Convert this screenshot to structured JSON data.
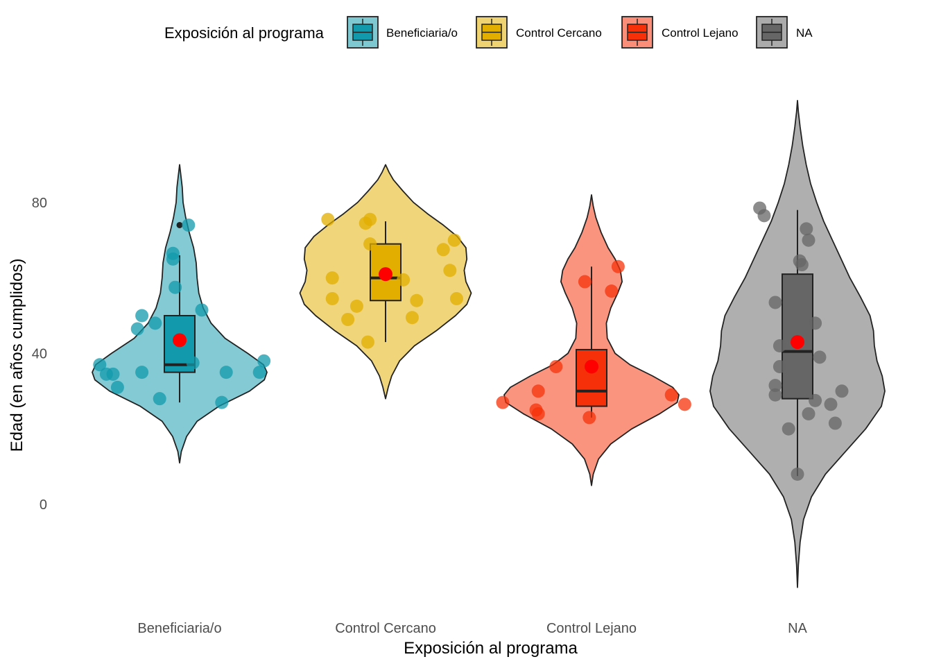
{
  "chart_data": {
    "type": "violin",
    "xlabel": "Exposición al programa",
    "ylabel": "Edad (en años cumplidos)",
    "ylim": [
      -28,
      110
    ],
    "y_ticks": [
      0,
      40,
      80
    ],
    "grid": false,
    "legend": {
      "title": "Exposición al programa",
      "placement": "top",
      "entries": [
        "Beneficiaria/o",
        "Control Cercano",
        "Control Lejano",
        "NA"
      ]
    },
    "categories": [
      "Beneficiaria/o",
      "Control Cercano",
      "Control Lejano",
      "NA"
    ],
    "series": [
      {
        "category": "Beneficiaria/o",
        "color": "#129aac",
        "violin_range": [
          11,
          90
        ],
        "violin_profile": [
          [
            11,
            0.0
          ],
          [
            14,
            0.02
          ],
          [
            18,
            0.08
          ],
          [
            22,
            0.2
          ],
          [
            26,
            0.45
          ],
          [
            30,
            0.8
          ],
          [
            33,
            0.97
          ],
          [
            35,
            1.0
          ],
          [
            37,
            0.96
          ],
          [
            40,
            0.78
          ],
          [
            44,
            0.52
          ],
          [
            48,
            0.36
          ],
          [
            52,
            0.27
          ],
          [
            56,
            0.22
          ],
          [
            60,
            0.2
          ],
          [
            64,
            0.19
          ],
          [
            68,
            0.16
          ],
          [
            72,
            0.11
          ],
          [
            76,
            0.07
          ],
          [
            80,
            0.04
          ],
          [
            84,
            0.03
          ],
          [
            88,
            0.01
          ],
          [
            90,
            0.0
          ]
        ],
        "box": {
          "whisker_low": 27,
          "q1": 35,
          "median": 37,
          "q3": 50,
          "whisker_high": 66
        },
        "outliers": [
          74
        ],
        "mean": 43.5,
        "points": [
          [
            -0.36,
            37
          ],
          [
            -0.33,
            34.5
          ],
          [
            -0.3,
            34.5
          ],
          [
            -0.28,
            31
          ],
          [
            -0.19,
            46.5
          ],
          [
            -0.17,
            50
          ],
          [
            -0.17,
            35
          ],
          [
            -0.11,
            48
          ],
          [
            -0.09,
            28
          ],
          [
            -0.03,
            65
          ],
          [
            -0.03,
            66.5
          ],
          [
            -0.02,
            57.5
          ],
          [
            0.04,
            74
          ],
          [
            0.06,
            37.5
          ],
          [
            0.1,
            51.5
          ],
          [
            0.19,
            27
          ],
          [
            0.21,
            35
          ],
          [
            0.36,
            35
          ],
          [
            0.38,
            38
          ]
        ]
      },
      {
        "category": "Control Cercano",
        "color": "#e2ae00",
        "violin_range": [
          28,
          90
        ],
        "violin_profile": [
          [
            28,
            0.0
          ],
          [
            31,
            0.03
          ],
          [
            34,
            0.07
          ],
          [
            38,
            0.16
          ],
          [
            42,
            0.33
          ],
          [
            46,
            0.58
          ],
          [
            50,
            0.8
          ],
          [
            53,
            0.93
          ],
          [
            56,
            0.98
          ],
          [
            59,
            0.92
          ],
          [
            62,
            0.9
          ],
          [
            65,
            0.93
          ],
          [
            68,
            0.92
          ],
          [
            71,
            0.82
          ],
          [
            74,
            0.66
          ],
          [
            77,
            0.48
          ],
          [
            80,
            0.32
          ],
          [
            83,
            0.2
          ],
          [
            86,
            0.09
          ],
          [
            88,
            0.04
          ],
          [
            90,
            0.0
          ]
        ],
        "box": {
          "whisker_low": 43,
          "q1": 54,
          "median": 60,
          "q3": 69,
          "whisker_high": 75
        },
        "outliers": [],
        "mean": 61,
        "points": [
          [
            -0.26,
            75.5
          ],
          [
            -0.24,
            60
          ],
          [
            -0.24,
            54.5
          ],
          [
            -0.17,
            49
          ],
          [
            -0.13,
            52.5
          ],
          [
            -0.09,
            74.5
          ],
          [
            -0.07,
            75.5
          ],
          [
            -0.08,
            43
          ],
          [
            -0.07,
            69
          ],
          [
            0.08,
            59.5
          ],
          [
            0.12,
            49.5
          ],
          [
            0.14,
            54
          ],
          [
            0.26,
            67.5
          ],
          [
            0.29,
            62
          ],
          [
            0.31,
            70
          ],
          [
            0.32,
            54.5
          ]
        ]
      },
      {
        "category": "Control Lejano",
        "color": "#f63109",
        "violin_range": [
          5,
          82
        ],
        "violin_profile": [
          [
            5,
            0.0
          ],
          [
            8,
            0.02
          ],
          [
            12,
            0.08
          ],
          [
            16,
            0.22
          ],
          [
            20,
            0.46
          ],
          [
            24,
            0.78
          ],
          [
            27,
            0.98
          ],
          [
            29,
            1.0
          ],
          [
            31,
            0.93
          ],
          [
            34,
            0.7
          ],
          [
            37,
            0.44
          ],
          [
            40,
            0.27
          ],
          [
            44,
            0.18
          ],
          [
            48,
            0.17
          ],
          [
            52,
            0.22
          ],
          [
            56,
            0.3
          ],
          [
            59,
            0.35
          ],
          [
            62,
            0.33
          ],
          [
            65,
            0.27
          ],
          [
            68,
            0.19
          ],
          [
            72,
            0.11
          ],
          [
            76,
            0.05
          ],
          [
            79,
            0.02
          ],
          [
            82,
            0.0
          ]
        ],
        "box": {
          "whisker_low": 23,
          "q1": 26,
          "median": 30,
          "q3": 41,
          "whisker_high": 63
        },
        "outliers": [],
        "mean": 36.5,
        "points": [
          [
            -0.4,
            27
          ],
          [
            -0.25,
            25
          ],
          [
            -0.24,
            24
          ],
          [
            -0.24,
            30
          ],
          [
            -0.16,
            36.5
          ],
          [
            -0.03,
            59
          ],
          [
            -0.01,
            23
          ],
          [
            0.09,
            56.5
          ],
          [
            0.12,
            63
          ],
          [
            0.36,
            29
          ],
          [
            0.42,
            26.5
          ]
        ]
      },
      {
        "category": "NA",
        "color": "#666666",
        "violin_range": [
          -22,
          107
        ],
        "violin_profile": [
          [
            -22,
            0.0
          ],
          [
            -16,
            0.01
          ],
          [
            -10,
            0.03
          ],
          [
            -4,
            0.07
          ],
          [
            2,
            0.16
          ],
          [
            8,
            0.32
          ],
          [
            14,
            0.55
          ],
          [
            20,
            0.78
          ],
          [
            26,
            0.96
          ],
          [
            30,
            1.0
          ],
          [
            34,
            0.97
          ],
          [
            38,
            0.91
          ],
          [
            42,
            0.88
          ],
          [
            46,
            0.87
          ],
          [
            50,
            0.83
          ],
          [
            55,
            0.72
          ],
          [
            60,
            0.6
          ],
          [
            65,
            0.5
          ],
          [
            70,
            0.4
          ],
          [
            75,
            0.3
          ],
          [
            80,
            0.22
          ],
          [
            85,
            0.15
          ],
          [
            90,
            0.1
          ],
          [
            95,
            0.06
          ],
          [
            100,
            0.03
          ],
          [
            104,
            0.01
          ],
          [
            107,
            0.0
          ]
        ],
        "box": {
          "whisker_low": 7.5,
          "q1": 28,
          "median": 40.5,
          "q3": 61,
          "whisker_high": 78
        },
        "outliers": [],
        "mean": 43,
        "points": [
          [
            -0.17,
            78.5
          ],
          [
            -0.15,
            76.5
          ],
          [
            -0.1,
            53.5
          ],
          [
            -0.08,
            42
          ],
          [
            -0.08,
            36.5
          ],
          [
            -0.1,
            31.5
          ],
          [
            -0.1,
            29
          ],
          [
            -0.04,
            20
          ],
          [
            0,
            8
          ],
          [
            0.01,
            64.5
          ],
          [
            0.02,
            63.5
          ],
          [
            0.04,
            73
          ],
          [
            0.05,
            70
          ],
          [
            0.08,
            48
          ],
          [
            0.1,
            39
          ],
          [
            0.08,
            27.5
          ],
          [
            0.05,
            24
          ],
          [
            0.15,
            26.5
          ],
          [
            0.17,
            21.5
          ],
          [
            0.2,
            30
          ]
        ]
      }
    ]
  }
}
